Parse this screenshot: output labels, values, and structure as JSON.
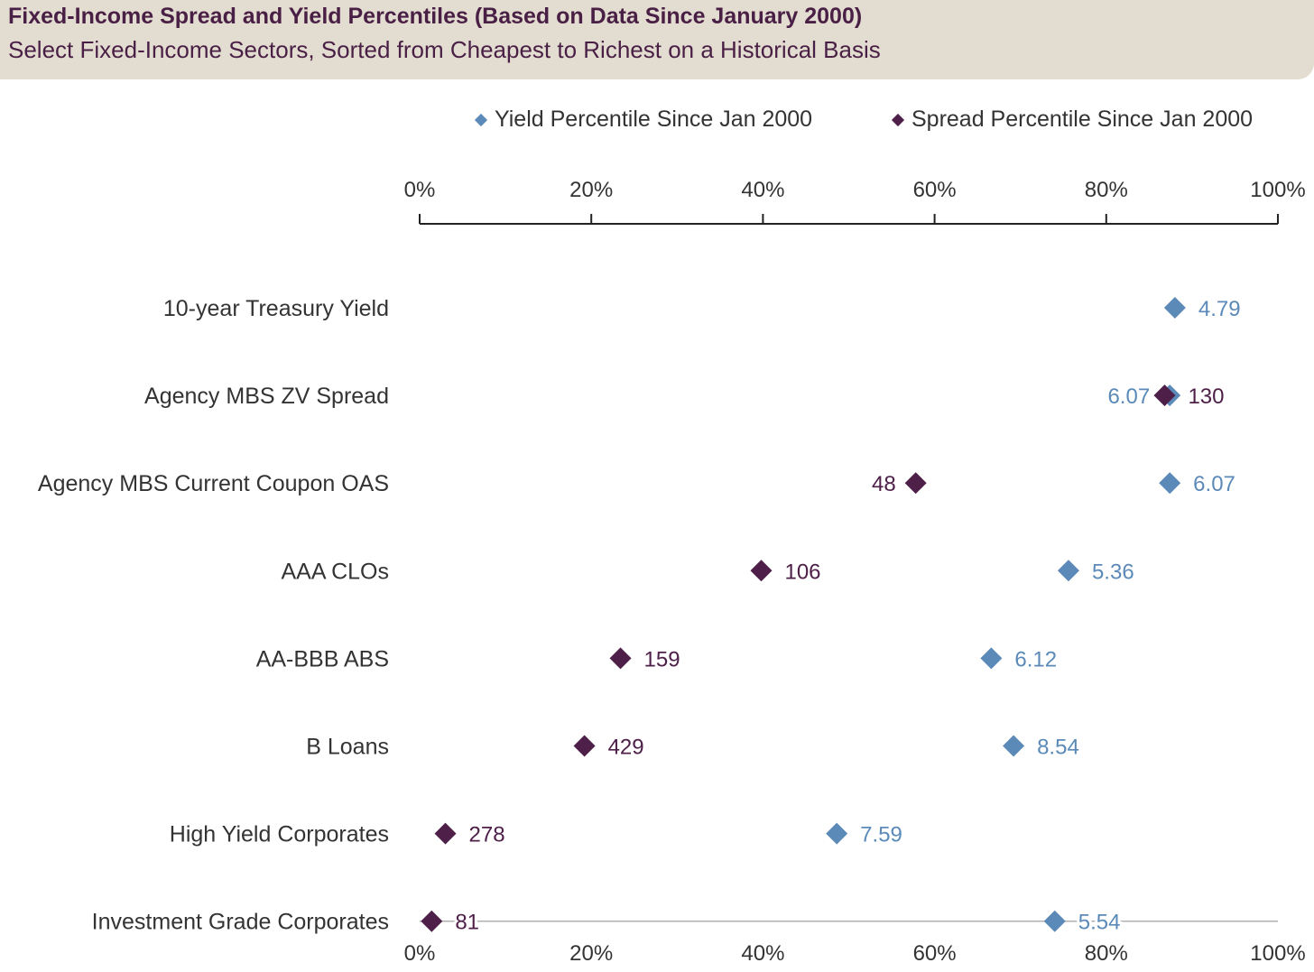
{
  "header": {
    "title": "Fixed-Income Spread and Yield Percentiles (Based on Data Since January 2000)",
    "subtitle": "Select Fixed-Income Sectors, Sorted from Cheapest to Richest on a Historical Basis"
  },
  "colors": {
    "yield": "#5b8ab8",
    "spread": "#4e2049",
    "axis": "#222222",
    "gridline": "#b0b0b0"
  },
  "chart_data": {
    "type": "scatter",
    "title": "Fixed-Income Spread and Yield Percentiles (Based on Data Since January 2000)",
    "subtitle": "Select Fixed-Income Sectors, Sorted from Cheapest to Richest on a Historical Basis",
    "xlim": [
      0,
      100
    ],
    "x_ticks": [
      0,
      20,
      40,
      60,
      80,
      100
    ],
    "x_tick_labels": [
      "0%",
      "20%",
      "40%",
      "60%",
      "80%",
      "100%"
    ],
    "legend_position": "top-right",
    "categories": [
      "10-year Treasury Yield",
      "Agency MBS ZV Spread",
      "Agency MBS Current Coupon OAS",
      "AAA CLOs",
      "AA-BBB ABS",
      "B Loans",
      "High Yield Corporates",
      "Investment Grade Corporates"
    ],
    "series": [
      {
        "name": "Yield Percentile Since Jan 2000",
        "color": "#5b8ab8",
        "values": [
          88.0,
          87.4,
          87.4,
          75.6,
          66.6,
          69.2,
          48.6,
          74.0
        ],
        "labels": [
          "4.79",
          "6.07",
          "6.07",
          "5.36",
          "6.12",
          "8.54",
          "7.59",
          "5.54"
        ],
        "label_side": [
          "right",
          "left",
          "right",
          "right",
          "right",
          "right",
          "right",
          "right"
        ]
      },
      {
        "name": "Spread Percentile Since Jan 2000",
        "color": "#4e2049",
        "values": [
          null,
          86.8,
          57.8,
          39.8,
          23.4,
          19.2,
          3.0,
          1.4
        ],
        "labels": [
          "",
          "130",
          "48",
          "106",
          "159",
          "429",
          "278",
          "81"
        ],
        "label_side": [
          "right",
          "right",
          "left",
          "right",
          "right",
          "right",
          "right",
          "right"
        ]
      }
    ]
  }
}
